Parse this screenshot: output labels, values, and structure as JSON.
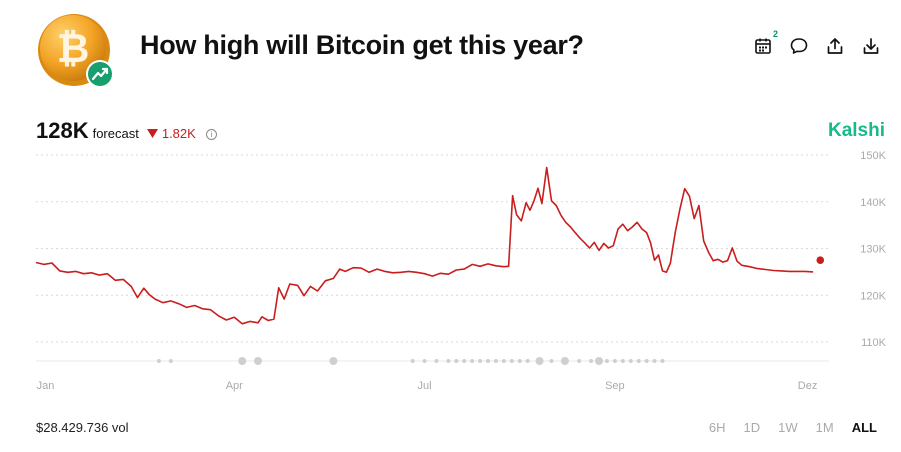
{
  "header": {
    "title": "How high will Bitcoin get this year?"
  },
  "toolbar": {
    "calendar_badge": "2"
  },
  "summary": {
    "value": "128K",
    "label": "forecast",
    "change": "1.82K",
    "info_glyph": "i"
  },
  "brand": "Kalshi",
  "footer": {
    "volume": "$28.429.736 vol"
  },
  "ranges": [
    {
      "label": "6H",
      "active": false
    },
    {
      "label": "1D",
      "active": false
    },
    {
      "label": "1W",
      "active": false
    },
    {
      "label": "1M",
      "active": false
    },
    {
      "label": "ALL",
      "active": true
    }
  ],
  "colors": {
    "line": "#c81e1e",
    "brand": "#19b98a",
    "grid": "#d9d9d9",
    "coin": "#f2a324",
    "badge": "#16a06e"
  },
  "icons": [
    "bitcoin-icon",
    "trending-up-icon",
    "calendar-icon",
    "comment-icon",
    "share-icon",
    "download-icon",
    "info-icon",
    "triangle-down-icon"
  ],
  "chart_data": {
    "type": "line",
    "x_tick_labels": [
      "Jan",
      "Apr",
      "Jul",
      "Sep",
      "Dez"
    ],
    "y_tick_labels": [
      "150K",
      "140K",
      "130K",
      "120K",
      "110K"
    ],
    "y_ticks": [
      150,
      140,
      130,
      120,
      110
    ],
    "ylim": [
      106,
      153
    ],
    "xlim": [
      0,
      100
    ],
    "grid": true,
    "series": [
      {
        "values": [
          [
            0,
            127
          ],
          [
            1,
            126.6
          ],
          [
            2,
            126.9
          ],
          [
            3,
            125.2
          ],
          [
            4,
            124.9
          ],
          [
            5,
            125.1
          ],
          [
            6,
            124.6
          ],
          [
            7,
            124.8
          ],
          [
            8,
            124.3
          ],
          [
            9,
            124.6
          ],
          [
            10,
            123.2
          ],
          [
            11,
            123.4
          ],
          [
            12,
            121.9
          ],
          [
            12.8,
            119.5
          ],
          [
            13.6,
            121.5
          ],
          [
            14.3,
            120.1
          ],
          [
            15,
            119.2
          ],
          [
            16,
            118.4
          ],
          [
            17,
            118.8
          ],
          [
            18,
            118.2
          ],
          [
            19,
            117.4
          ],
          [
            20,
            117.8
          ],
          [
            21,
            117.1
          ],
          [
            22,
            116.9
          ],
          [
            23,
            115.6
          ],
          [
            24,
            114.7
          ],
          [
            25,
            115.3
          ],
          [
            26,
            113.9
          ],
          [
            27,
            114.4
          ],
          [
            28,
            114.1
          ],
          [
            28.5,
            115.4
          ],
          [
            29.3,
            114.6
          ],
          [
            30,
            114.9
          ],
          [
            30.6,
            121.6
          ],
          [
            31.3,
            119.2
          ],
          [
            32,
            122.4
          ],
          [
            33,
            122.1
          ],
          [
            33.8,
            119.9
          ],
          [
            34.6,
            121.9
          ],
          [
            35.5,
            120.9
          ],
          [
            36.5,
            123.1
          ],
          [
            37.5,
            123.6
          ],
          [
            38.3,
            125.6
          ],
          [
            39,
            125.1
          ],
          [
            40,
            125.9
          ],
          [
            41,
            125.8
          ],
          [
            42,
            124.9
          ],
          [
            43,
            125.6
          ],
          [
            44,
            125.1
          ],
          [
            45,
            124.8
          ],
          [
            46,
            124.9
          ],
          [
            47,
            125.1
          ],
          [
            48,
            124.9
          ],
          [
            49,
            124.6
          ],
          [
            50,
            124.1
          ],
          [
            51,
            124.7
          ],
          [
            52,
            124.5
          ],
          [
            53,
            125.4
          ],
          [
            54,
            125.6
          ],
          [
            55,
            126.6
          ],
          [
            56,
            126.2
          ],
          [
            57,
            126.7
          ],
          [
            58,
            126.3
          ],
          [
            59,
            126.1
          ],
          [
            59.6,
            126.2
          ],
          [
            60.1,
            141.3
          ],
          [
            60.6,
            137.2
          ],
          [
            61.2,
            135.9
          ],
          [
            61.8,
            139.8
          ],
          [
            62.3,
            138.2
          ],
          [
            62.8,
            140.2
          ],
          [
            63.3,
            142.9
          ],
          [
            63.8,
            139.6
          ],
          [
            64.4,
            147.3
          ],
          [
            65,
            140.2
          ],
          [
            65.6,
            139.2
          ],
          [
            66.2,
            137.1
          ],
          [
            66.8,
            135.6
          ],
          [
            67.4,
            134.6
          ],
          [
            68,
            133.4
          ],
          [
            68.6,
            132.2
          ],
          [
            69.2,
            131.2
          ],
          [
            69.8,
            130.1
          ],
          [
            70.4,
            131.3
          ],
          [
            71,
            129.6
          ],
          [
            71.6,
            131.1
          ],
          [
            72.2,
            130.1
          ],
          [
            72.8,
            130.6
          ],
          [
            73.4,
            134.2
          ],
          [
            74,
            135.2
          ],
          [
            74.6,
            133.8
          ],
          [
            75.2,
            134.6
          ],
          [
            75.8,
            135.6
          ],
          [
            76.4,
            134.2
          ],
          [
            77,
            133.4
          ],
          [
            77.5,
            131.2
          ],
          [
            78,
            127.5
          ],
          [
            78.5,
            128.6
          ],
          [
            79,
            125.2
          ],
          [
            79.5,
            124.9
          ],
          [
            80,
            126.9
          ],
          [
            80.6,
            133.4
          ],
          [
            81.2,
            138.4
          ],
          [
            81.8,
            142.8
          ],
          [
            82.4,
            141.2
          ],
          [
            83,
            136.4
          ],
          [
            83.6,
            139.2
          ],
          [
            84.2,
            131.6
          ],
          [
            84.8,
            129.2
          ],
          [
            85.4,
            127.4
          ],
          [
            86,
            127.7
          ],
          [
            86.6,
            127.1
          ],
          [
            87.2,
            127.4
          ],
          [
            87.8,
            130.1
          ],
          [
            88.4,
            127.3
          ],
          [
            89,
            126.4
          ],
          [
            90,
            126.1
          ],
          [
            91,
            125.7
          ],
          [
            92,
            125.5
          ],
          [
            93,
            125.3
          ],
          [
            94,
            125.2
          ],
          [
            95,
            125.1
          ],
          [
            96,
            125.1
          ],
          [
            97,
            125.1
          ],
          [
            98,
            125
          ]
        ]
      }
    ],
    "last_point": [
      98.9,
      127.5
    ],
    "event_dots": [
      {
        "x": 15.5,
        "r": 2
      },
      {
        "x": 17,
        "r": 2
      },
      {
        "x": 26,
        "r": 4
      },
      {
        "x": 28,
        "r": 4
      },
      {
        "x": 37.5,
        "r": 4
      },
      {
        "x": 47.5,
        "r": 2
      },
      {
        "x": 49,
        "r": 2
      },
      {
        "x": 50.5,
        "r": 2
      },
      {
        "x": 52,
        "r": 2
      },
      {
        "x": 53,
        "r": 2
      },
      {
        "x": 54,
        "r": 2
      },
      {
        "x": 55,
        "r": 2
      },
      {
        "x": 56,
        "r": 2
      },
      {
        "x": 57,
        "r": 2
      },
      {
        "x": 58,
        "r": 2
      },
      {
        "x": 59,
        "r": 2
      },
      {
        "x": 60,
        "r": 2
      },
      {
        "x": 61,
        "r": 2
      },
      {
        "x": 62,
        "r": 2
      },
      {
        "x": 63.5,
        "r": 4
      },
      {
        "x": 65,
        "r": 2
      },
      {
        "x": 66.7,
        "r": 4
      },
      {
        "x": 68.5,
        "r": 2
      },
      {
        "x": 70,
        "r": 2
      },
      {
        "x": 71,
        "r": 4
      },
      {
        "x": 72,
        "r": 2
      },
      {
        "x": 73,
        "r": 2
      },
      {
        "x": 74,
        "r": 2
      },
      {
        "x": 75,
        "r": 2
      },
      {
        "x": 76,
        "r": 2
      },
      {
        "x": 77,
        "r": 2
      },
      {
        "x": 78,
        "r": 2
      },
      {
        "x": 79,
        "r": 2
      }
    ],
    "x_tick_positions": [
      1.2,
      25,
      49,
      73,
      97.3
    ]
  }
}
